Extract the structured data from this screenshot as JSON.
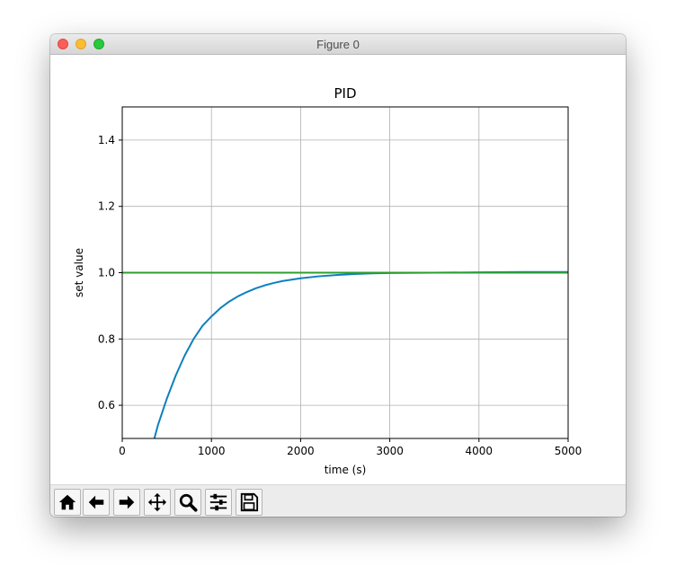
{
  "window": {
    "title": "Figure 0"
  },
  "toolbar": {
    "buttons": [
      {
        "icon": "home-icon"
      },
      {
        "icon": "back-arrow-icon"
      },
      {
        "icon": "forward-arrow-icon"
      },
      {
        "icon": "pan-icon"
      },
      {
        "icon": "zoom-icon"
      },
      {
        "icon": "configure-subplots-icon"
      },
      {
        "icon": "save-icon"
      }
    ]
  },
  "chart_data": {
    "type": "line",
    "title": "PID",
    "xlabel": "time (s)",
    "ylabel": "set value",
    "xlim": [
      0,
      5000
    ],
    "ylim": [
      0.5,
      1.5
    ],
    "xticks": [
      0,
      1000,
      2000,
      3000,
      4000,
      5000
    ],
    "yticks": [
      0.6,
      0.8,
      1.0,
      1.2,
      1.4
    ],
    "xtick_labels": [
      "0",
      "1000",
      "2000",
      "3000",
      "4000",
      "5000"
    ],
    "ytick_labels": [
      "0.6",
      "0.8",
      "1.0",
      "1.2",
      "1.4"
    ],
    "grid": true,
    "series": [
      {
        "color": "#0e7fbf",
        "x": [
          360,
          400,
          500,
          600,
          700,
          800,
          900,
          1000,
          1100,
          1200,
          1300,
          1400,
          1500,
          1600,
          1700,
          1800,
          2000,
          2200,
          2400,
          2600,
          2800,
          3000,
          3500,
          4000,
          4500,
          5000
        ],
        "y": [
          0.5,
          0.54,
          0.62,
          0.69,
          0.75,
          0.8,
          0.84,
          0.868,
          0.893,
          0.913,
          0.929,
          0.942,
          0.953,
          0.962,
          0.969,
          0.975,
          0.983,
          0.989,
          0.993,
          0.996,
          0.998,
          0.999,
          1.0,
          1.001,
          1.002,
          1.002
        ]
      },
      {
        "color": "#2ca02c",
        "x": [
          0,
          5000
        ],
        "y": [
          1.0,
          1.0
        ]
      }
    ]
  }
}
